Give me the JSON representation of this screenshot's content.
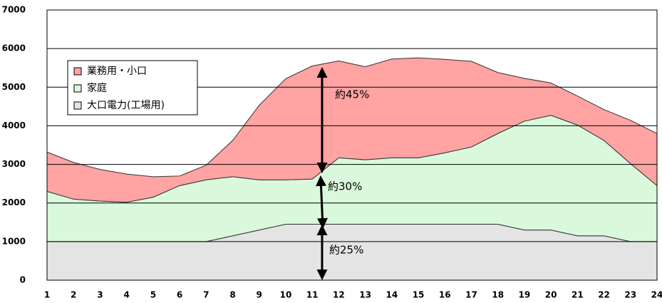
{
  "chart_data": {
    "type": "stacked-area",
    "x": [
      1,
      2,
      3,
      4,
      5,
      6,
      7,
      8,
      9,
      10,
      11,
      12,
      13,
      14,
      15,
      16,
      17,
      18,
      19,
      20,
      21,
      22,
      23,
      24
    ],
    "xlim": [
      1,
      24
    ],
    "ylim": [
      0,
      7000
    ],
    "yticks": [
      0,
      1000,
      2000,
      3000,
      4000,
      5000,
      6000,
      7000
    ],
    "grid": true,
    "legend": "upper-left",
    "series": [
      {
        "name": "業務用・小口",
        "color": "#ffa3a3",
        "values": [
          1020,
          950,
          820,
          730,
          530,
          250,
          380,
          940,
          1930,
          2620,
          2930,
          2510,
          2410,
          2560,
          2590,
          2420,
          2220,
          1580,
          1110,
          840,
          750,
          800,
          1120,
          1350
        ]
      },
      {
        "name": "家庭",
        "color": "#d9f8dc",
        "values": [
          1300,
          1100,
          1050,
          1020,
          1150,
          1450,
          1600,
          1530,
          1300,
          1150,
          1170,
          1720,
          1670,
          1720,
          1720,
          1850,
          2000,
          2350,
          2820,
          2970,
          2870,
          2470,
          2020,
          1450
        ]
      },
      {
        "name": "大口電力(工場用)",
        "color": "#e4e4e4",
        "values": [
          1000,
          1000,
          1000,
          1000,
          1000,
          1000,
          1000,
          1150,
          1300,
          1450,
          1450,
          1450,
          1450,
          1450,
          1450,
          1450,
          1450,
          1450,
          1300,
          1300,
          1150,
          1150,
          1000,
          1000
        ]
      }
    ],
    "annotations": [
      "約45%",
      "約30%",
      "約25%"
    ]
  }
}
